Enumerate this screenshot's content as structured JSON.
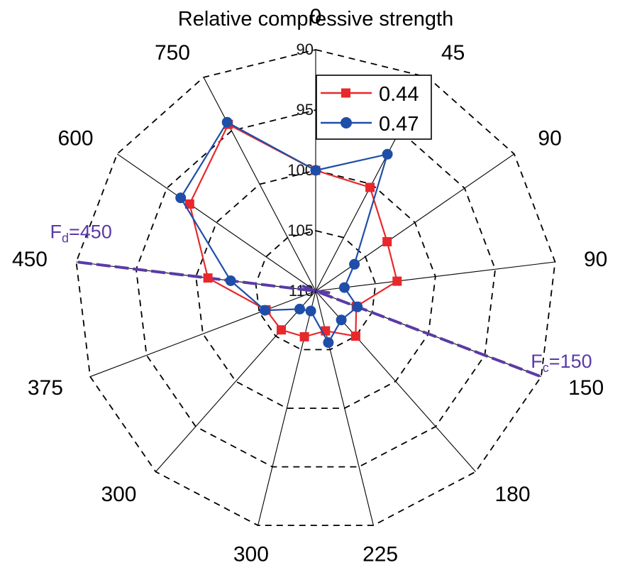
{
  "chart_data": {
    "type": "radar",
    "title": "Relative compressive strength",
    "axis_ticks": [
      "0",
      "45",
      "90",
      "90",
      "150",
      "180",
      "225",
      "300",
      "300",
      "375",
      "450",
      "600",
      "750"
    ],
    "radial_ticks": [
      "90",
      "95",
      "100",
      "105",
      "110"
    ],
    "radial_range": [
      90,
      110
    ],
    "radial_inverted": true,
    "grid": true,
    "legend_position": "top-center",
    "series": [
      {
        "name": "0.44",
        "color": "#e8282b",
        "marker": "square",
        "values": [
          100,
          100.3,
          102.8,
          103.2,
          106.4,
          105.0,
          106.6,
          106.1,
          105.7,
          105.6,
          101.0,
          97.3,
          94.4
        ]
      },
      {
        "name": "0.47",
        "color": "#1f4ea8",
        "marker": "circle",
        "values": [
          100,
          97.2,
          106.1,
          107.6,
          106.3,
          106.8,
          105.6,
          108.3,
          108.0,
          105.5,
          102.9,
          96.4,
          94.2
        ]
      }
    ],
    "annotations": [
      {
        "label": "F",
        "sub": "c",
        "value": "=150",
        "axis_index": 4
      },
      {
        "label": "F",
        "sub": "d",
        "value": "=450",
        "axis_index": 10
      }
    ],
    "annotation_color": "#5b3aa6"
  }
}
